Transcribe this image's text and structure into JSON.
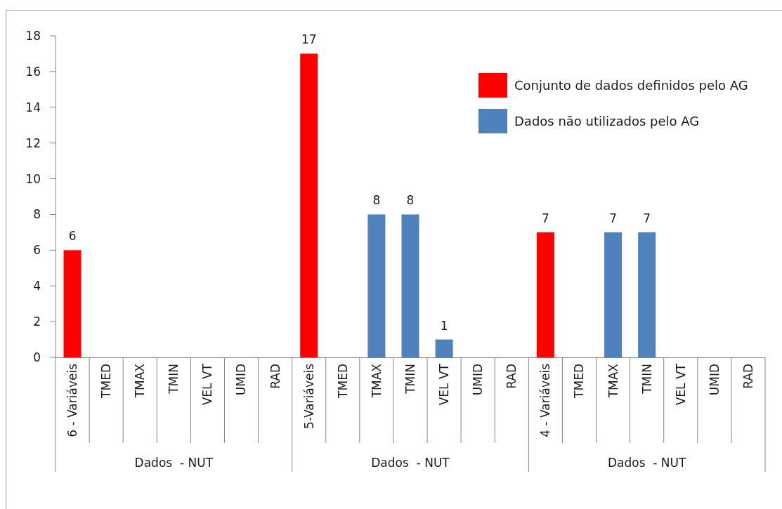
{
  "chart_data": {
    "type": "bar",
    "categories": [
      "6 - Variáveis",
      "TMED",
      "TMAX",
      "TMIN",
      "VEL VT",
      "UMID",
      "RAD",
      "5-Variáveis",
      "TMED",
      "TMAX",
      "TMIN",
      "VEL VT",
      "UMID",
      "RAD",
      "4 - Variáveis",
      "TMED",
      "TMAX",
      "TMIN",
      "VEL VT",
      "UMID",
      "RAD"
    ],
    "series": [
      {
        "name": "Conjunto de dados definidos pelo AG",
        "color": "#ff0000",
        "values": [
          6,
          null,
          null,
          null,
          null,
          null,
          null,
          17,
          null,
          null,
          null,
          null,
          null,
          null,
          7,
          null,
          null,
          null,
          null,
          null,
          null
        ]
      },
      {
        "name": "Dados não utilizados pelo AG",
        "color": "#4f81bd",
        "values": [
          null,
          null,
          null,
          null,
          null,
          null,
          null,
          null,
          null,
          8,
          8,
          1,
          null,
          null,
          null,
          null,
          7,
          7,
          null,
          null,
          null
        ]
      }
    ],
    "stacked": true,
    "ylim": [
      0,
      18
    ],
    "yticks": [
      0,
      2,
      4,
      6,
      8,
      10,
      12,
      14,
      16,
      18
    ],
    "data_labels": true,
    "legend": "top right",
    "annotations": [
      "Dados  - NUT",
      "Dados  - NUT",
      "Dados  - NUT"
    ]
  }
}
